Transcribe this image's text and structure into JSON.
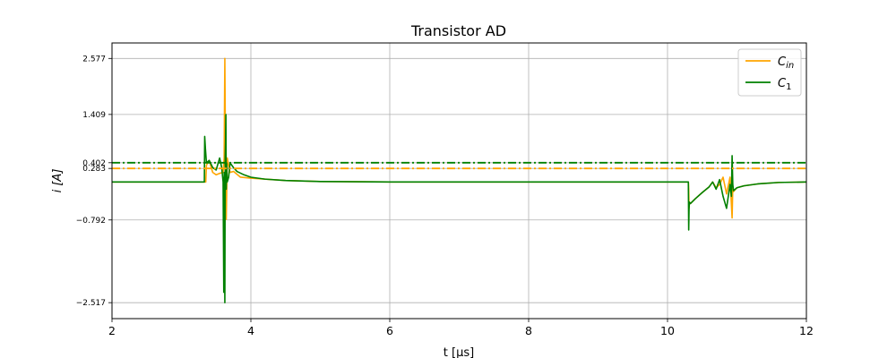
{
  "chart_data": {
    "type": "line",
    "title": "Transistor AD",
    "xlabel": "t [μs]",
    "ylabel": "i [A]",
    "xlim": [
      2,
      12
    ],
    "ylim": [
      -2.85,
      2.9
    ],
    "xticks": [
      2,
      4,
      6,
      8,
      10,
      12
    ],
    "xtick_labels": [
      "2",
      "4",
      "6",
      "8",
      "10",
      "12"
    ],
    "yticks": [
      -2.517,
      -0.792,
      0.283,
      0.402,
      1.409,
      2.577
    ],
    "ytick_labels": [
      "−2.517",
      "−0.792",
      "0.283",
      "0.402",
      "1.409",
      "2.577"
    ],
    "grid": true,
    "legend_position": "top-right",
    "colors": {
      "C_in": "#ffa500",
      "C_1": "#008000"
    },
    "series": [
      {
        "name": "C_in",
        "legend_main": "C",
        "legend_sub": "in",
        "color": "#ffa500",
        "style": "solid",
        "x": [
          2.0,
          3.35,
          3.36,
          3.4,
          3.45,
          3.5,
          3.55,
          3.6,
          3.615,
          3.625,
          3.635,
          3.645,
          3.66,
          3.68,
          3.7,
          3.75,
          3.85,
          4.0,
          4.5,
          5.0,
          6.0,
          8.0,
          10.0,
          10.3,
          10.305,
          10.31,
          10.315,
          10.33,
          10.4,
          10.5,
          10.6,
          10.65,
          10.7,
          10.75,
          10.8,
          10.85,
          10.9,
          10.93,
          10.94,
          10.95,
          11.0,
          11.1,
          11.3,
          11.6,
          12.0
        ],
        "y": [
          0.0,
          0.0,
          0.35,
          0.45,
          0.2,
          0.15,
          0.18,
          0.2,
          0.5,
          2.577,
          0.35,
          -0.78,
          0.5,
          0.35,
          0.2,
          0.22,
          0.1,
          0.08,
          0.03,
          0.01,
          0.0,
          0.0,
          0.0,
          0.0,
          -0.15,
          -0.55,
          -0.42,
          -0.45,
          -0.35,
          -0.22,
          -0.1,
          0.0,
          -0.12,
          -0.05,
          0.1,
          -0.25,
          0.1,
          -0.75,
          -0.1,
          -0.2,
          -0.12,
          -0.08,
          -0.04,
          -0.01,
          0.0
        ]
      },
      {
        "name": "C_1",
        "legend_main": "C",
        "legend_sub": "1",
        "color": "#008000",
        "style": "solid",
        "x": [
          2.0,
          3.33,
          3.335,
          3.345,
          3.36,
          3.4,
          3.45,
          3.5,
          3.55,
          3.58,
          3.6,
          3.61,
          3.615,
          3.62,
          3.625,
          3.63,
          3.635,
          3.64,
          3.645,
          3.65,
          3.66,
          3.68,
          3.7,
          3.75,
          3.8,
          3.9,
          4.0,
          4.2,
          4.5,
          5.0,
          6.0,
          8.0,
          10.3,
          10.305,
          10.31,
          10.315,
          10.33,
          10.4,
          10.5,
          10.6,
          10.65,
          10.7,
          10.75,
          10.8,
          10.85,
          10.9,
          10.92,
          10.93,
          10.94,
          10.95,
          11.0,
          11.1,
          11.3,
          11.6,
          12.0
        ],
        "y": [
          0.0,
          0.0,
          0.95,
          0.7,
          0.4,
          0.45,
          0.3,
          0.25,
          0.5,
          0.3,
          0.0,
          -2.3,
          0.2,
          -1.0,
          -2.517,
          0.5,
          0.8,
          1.409,
          -0.15,
          0.4,
          0.0,
          0.1,
          0.4,
          0.3,
          0.22,
          0.15,
          0.1,
          0.06,
          0.03,
          0.01,
          0.0,
          0.0,
          0.0,
          -1.0,
          -0.55,
          -0.42,
          -0.45,
          -0.35,
          -0.22,
          -0.1,
          0.0,
          -0.15,
          0.05,
          -0.3,
          -0.55,
          -0.05,
          -0.3,
          0.55,
          -0.05,
          -0.18,
          -0.12,
          -0.08,
          -0.04,
          -0.01,
          0.0
        ]
      },
      {
        "name": "C_in mean",
        "color": "#ffa500",
        "style": "dashdot",
        "x": [
          2,
          12
        ],
        "y": [
          0.283,
          0.283
        ]
      },
      {
        "name": "C_1 mean",
        "color": "#008000",
        "style": "dashdot",
        "x": [
          2,
          12
        ],
        "y": [
          0.402,
          0.402
        ]
      }
    ]
  }
}
